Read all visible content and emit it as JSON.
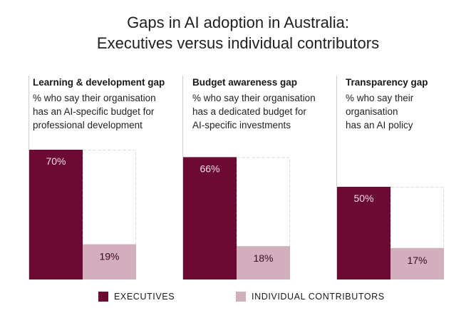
{
  "title_line1": "Gaps in AI adoption in Australia:",
  "title_line2": "Executives versus individual contributors",
  "colors": {
    "executives": "#6b0a33",
    "individual_contributors": "#d3aebc",
    "dashed_outline": "#d9d9d9",
    "divider": "#cfcfcf"
  },
  "panels": [
    {
      "heading": "Learning & development gap",
      "sub": [
        "% who say their organisation",
        "has an AI-specific budget for",
        "professional development"
      ]
    },
    {
      "heading": "Budget awareness gap",
      "sub": [
        "% who say their organisation",
        "has a dedicated budget for",
        "AI-specific investments"
      ]
    },
    {
      "heading": "Transparency gap",
      "sub": [
        "% who say their",
        "organisation",
        "has an AI policy"
      ]
    }
  ],
  "legend": {
    "executives": "EXECUTIVES",
    "individual_contributors": "INDIVIDUAL CONTRIBUTORS"
  },
  "chart_data": {
    "type": "bar",
    "categories": [
      "Learning & development gap",
      "Budget awareness gap",
      "Transparency gap"
    ],
    "series": [
      {
        "name": "EXECUTIVES",
        "values": [
          70,
          66,
          50
        ],
        "labels": [
          "70%",
          "66%",
          "50%"
        ]
      },
      {
        "name": "INDIVIDUAL CONTRIBUTORS",
        "values": [
          19,
          18,
          17
        ],
        "labels": [
          "19%",
          "18%",
          "17%"
        ]
      }
    ],
    "unit": "%",
    "ylim": [
      0,
      100
    ],
    "grid": false,
    "legend_position": "bottom"
  }
}
